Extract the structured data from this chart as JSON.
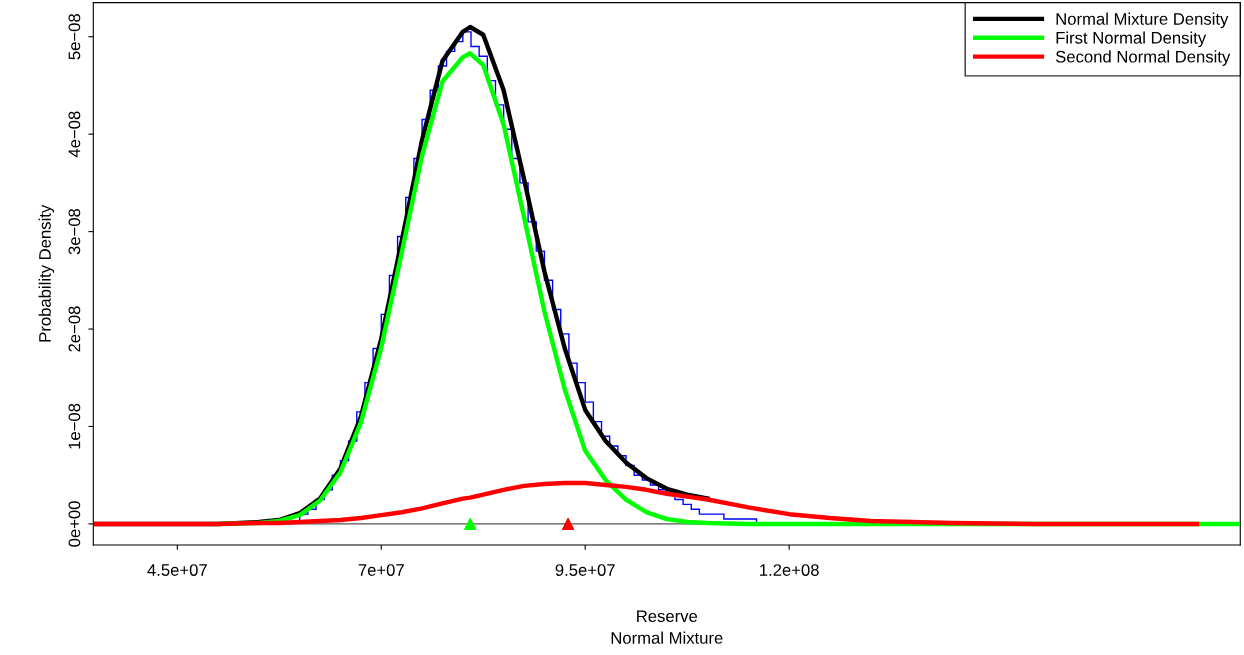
{
  "chart_data": {
    "type": "line",
    "xlabel": "Reserve",
    "subtitle": "Normal Mixture",
    "ylabel": "Probability Density",
    "xlim": [
      34700000,
      175300000
    ],
    "ylim": [
      -2.16e-09,
      5.35e-08
    ],
    "xticks": [
      {
        "value": 45000000,
        "label": "4.5e+07"
      },
      {
        "value": 70000000,
        "label": "7e+07"
      },
      {
        "value": 95000000,
        "label": "9.5e+07"
      },
      {
        "value": 120000000,
        "label": "1.2e+08"
      }
    ],
    "yticks": [
      {
        "value": 0,
        "label": "0e+00"
      },
      {
        "value": 1e-08,
        "label": "1e−08"
      },
      {
        "value": 2e-08,
        "label": "2e−08"
      },
      {
        "value": 3e-08,
        "label": "3e−08"
      },
      {
        "value": 4e-08,
        "label": "4e−08"
      },
      {
        "value": 5e-08,
        "label": "5e−08"
      }
    ],
    "grid": false,
    "legend": "top right",
    "marker": "none",
    "line_style": "solid",
    "ref_lines": [
      {
        "axis": "y",
        "value": 0,
        "color": "#555555"
      }
    ],
    "series": [
      {
        "type": "histogram",
        "color": "#0000ff",
        "bins": [
          60000000,
          61000000,
          62000000,
          63000000,
          64000000,
          65000000,
          66000000,
          67000000,
          68000000,
          69000000,
          70000000,
          71000000,
          72000000,
          73000000,
          74000000,
          75000000,
          76000000,
          77000000,
          78000000,
          79000000,
          80000000,
          81000000,
          82000000,
          83000000,
          84000000,
          85000000,
          86000000,
          87000000,
          88000000,
          89000000,
          90000000,
          91000000,
          92000000,
          93000000,
          94000000,
          95000000,
          96000000,
          97000000,
          98000000,
          99000000,
          100000000,
          101000000,
          102000000,
          103000000,
          104000000,
          105000000,
          106000000,
          107000000,
          108000000,
          109000000,
          110000000,
          111000000,
          112000000,
          113000000,
          114000000,
          115000000,
          116000000
        ],
        "values": [
          1e-09,
          1.5e-09,
          2.5e-09,
          3.5e-09,
          5e-09,
          6.5e-09,
          8.5e-09,
          1.15e-08,
          1.45e-08,
          1.8e-08,
          2.15e-08,
          2.55e-08,
          2.95e-08,
          3.35e-08,
          3.75e-08,
          4.15e-08,
          4.45e-08,
          4.7e-08,
          4.85e-08,
          4.95e-08,
          5.05e-08,
          4.9e-08,
          4.8e-08,
          4.55e-08,
          4.3e-08,
          4.05e-08,
          3.75e-08,
          3.5e-08,
          3.1e-08,
          2.8e-08,
          2.5e-08,
          2.2e-08,
          1.95e-08,
          1.65e-08,
          1.45e-08,
          1.25e-08,
          1.05e-08,
          9e-09,
          8e-09,
          7e-09,
          6e-09,
          5e-09,
          4.5e-09,
          4e-09,
          3.5e-09,
          3e-09,
          2.5e-09,
          2e-09,
          1.5e-09,
          1e-09,
          1e-09,
          1e-09,
          5e-10,
          5e-10,
          5e-10,
          5e-10
        ]
      },
      {
        "name": "Normal Mixture Density",
        "color": "#000000",
        "x": [
          35000000,
          40000000,
          45000000,
          50000000,
          55000000,
          57500000,
          60000000,
          62500000,
          65000000,
          67500000,
          70000000,
          72500000,
          75000000,
          77500000,
          80000000,
          80900000,
          82500000,
          85000000,
          87500000,
          90000000,
          92500000,
          95000000,
          97500000,
          100000000,
          102500000,
          105000000,
          107500000,
          110000000
        ],
        "values": [
          0,
          0,
          0,
          0,
          2e-10,
          4e-10,
          1.1e-09,
          2.6e-09,
          5.7e-09,
          1.1e-08,
          1.9e-08,
          2.9e-08,
          3.94e-08,
          4.75e-08,
          5.05e-08,
          5.1e-08,
          5.02e-08,
          4.45e-08,
          3.54e-08,
          2.59e-08,
          1.8e-08,
          1.17e-08,
          8.5e-09,
          6.3e-09,
          4.7e-09,
          3.6e-09,
          3e-09,
          2.6e-09
        ]
      },
      {
        "name": "First Normal Density",
        "color": "#00ff00",
        "x": [
          50000000,
          55000000,
          57500000,
          60000000,
          62500000,
          65000000,
          67500000,
          70000000,
          72500000,
          75000000,
          77500000,
          80000000,
          80900000,
          82500000,
          85000000,
          87500000,
          90000000,
          92500000,
          95000000,
          97500000,
          100000000,
          102500000,
          105000000,
          107500000,
          110000000,
          115000000,
          120000000,
          125000000,
          130000000,
          135000000,
          140000000,
          150000000,
          160000000,
          170000000,
          175000000
        ],
        "values": [
          0,
          1e-10,
          3e-10,
          9e-10,
          2.4e-09,
          5.3e-09,
          1.04e-08,
          1.81e-08,
          2.78e-08,
          3.78e-08,
          4.54e-08,
          4.79e-08,
          4.83e-08,
          4.71e-08,
          4.1e-08,
          3.15e-08,
          2.18e-08,
          1.38e-08,
          7.5e-09,
          4.5e-09,
          2.5e-09,
          1.2e-09,
          5e-10,
          2e-10,
          1e-10,
          0,
          0,
          0,
          0,
          0,
          0,
          0,
          0,
          0,
          0
        ]
      },
      {
        "name": "Second Normal Density",
        "color": "#ff0000",
        "x": [
          35000000,
          40000000,
          45000000,
          50000000,
          55000000,
          57500000,
          60000000,
          62500000,
          65000000,
          67500000,
          70000000,
          72500000,
          75000000,
          77500000,
          80000000,
          80900000,
          82500000,
          85000000,
          87500000,
          90000000,
          92500000,
          95000000,
          97500000,
          100000000,
          102500000,
          105000000,
          107500000,
          110000000,
          115000000,
          120000000,
          125000000,
          130000000,
          135000000,
          140000000,
          150000000,
          160000000,
          170000000
        ],
        "values": [
          0,
          0,
          0,
          0,
          1e-10,
          1e-10,
          2e-10,
          3e-10,
          4e-10,
          6e-10,
          9e-10,
          1.2e-09,
          1.6e-09,
          2.1e-09,
          2.6e-09,
          2.7e-09,
          3e-09,
          3.5e-09,
          3.9e-09,
          4.1e-09,
          4.2e-09,
          4.2e-09,
          4e-09,
          3.8e-09,
          3.5e-09,
          3.1e-09,
          2.8e-09,
          2.5e-09,
          1.7e-09,
          1e-09,
          6e-10,
          3e-10,
          2e-10,
          1e-10,
          0,
          0,
          0
        ]
      },
      {
        "type": "scatter",
        "marker": "triangle",
        "x": [
          80900000,
          92900000
        ],
        "values": [
          0,
          0
        ],
        "colors": [
          "#00ff00",
          "#ff0000"
        ]
      }
    ]
  }
}
